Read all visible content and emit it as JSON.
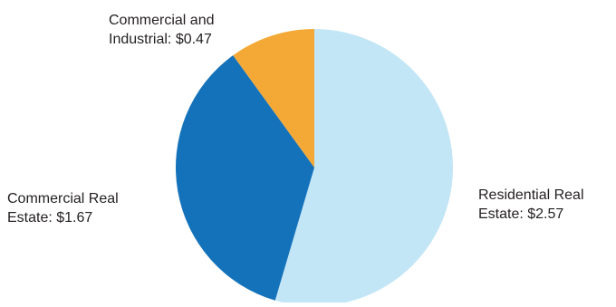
{
  "chart_data": {
    "type": "pie",
    "title": "",
    "slices": [
      {
        "name": "Residential Real Estate",
        "label_lines": [
          "Residential Real",
          "Estate: $2.57"
        ],
        "value": 2.57,
        "color": "#c3e6f6"
      },
      {
        "name": "Commercial Real Estate",
        "label_lines": [
          "Commercial Real",
          "Estate: $1.67"
        ],
        "value": 1.67,
        "color": "#1472ba"
      },
      {
        "name": "Commercial and Industrial",
        "label_lines": [
          "Commercial and",
          "Industrial: $0.47"
        ],
        "value": 0.47,
        "color": "#f4a937"
      }
    ],
    "start_angle_deg": 0,
    "direction": "clockwise",
    "legend": "none"
  }
}
